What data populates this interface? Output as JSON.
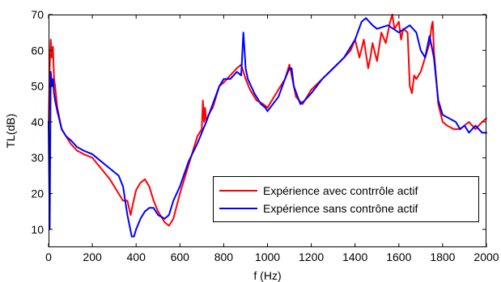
{
  "chart_data": {
    "type": "line",
    "title": "",
    "xlabel": "f (Hz)",
    "ylabel": "TL(dB)",
    "xlim": [
      0,
      2000
    ],
    "ylim": [
      5,
      70
    ],
    "xticks": [
      "0",
      "200",
      "400",
      "600",
      "800",
      "1000",
      "1200",
      "1400",
      "1600",
      "1800",
      "2000"
    ],
    "yticks": [
      "10",
      "20",
      "30",
      "40",
      "50",
      "60",
      "70"
    ],
    "grid": false,
    "legend_position": "bottom-right",
    "series": [
      {
        "name": "Expérience avec contrrôle actif",
        "color": "#ff0000",
        "x": [
          0,
          5,
          10,
          15,
          20,
          25,
          30,
          40,
          60,
          80,
          100,
          130,
          160,
          200,
          240,
          280,
          320,
          340,
          360,
          375,
          385,
          400,
          420,
          440,
          460,
          480,
          500,
          530,
          550,
          570,
          600,
          640,
          680,
          700,
          705,
          710,
          715,
          720,
          730,
          750,
          780,
          800,
          830,
          860,
          880,
          900,
          920,
          950,
          980,
          1000,
          1050,
          1080,
          1100,
          1110,
          1130,
          1160,
          1180,
          1200,
          1250,
          1300,
          1350,
          1380,
          1400,
          1420,
          1440,
          1460,
          1470,
          1480,
          1500,
          1520,
          1540,
          1560,
          1570,
          1580,
          1600,
          1610,
          1620,
          1640,
          1650,
          1660,
          1670,
          1680,
          1700,
          1720,
          1740,
          1750,
          1755,
          1760,
          1780,
          1800,
          1820,
          1850,
          1880,
          1900,
          1920,
          1950,
          1980,
          2000
        ],
        "y": [
          38,
          55,
          63,
          58,
          61,
          52,
          50,
          44,
          38,
          36,
          34,
          32,
          31,
          30,
          27,
          24,
          20,
          18,
          18,
          14,
          17,
          21,
          23,
          24,
          22,
          18,
          15,
          12,
          11,
          13,
          20,
          28,
          36,
          38,
          46,
          40,
          44,
          40,
          42,
          44,
          50,
          51,
          53,
          55,
          56,
          52,
          49,
          46,
          45,
          44,
          49,
          52,
          56,
          53,
          47,
          45,
          47,
          49,
          52,
          55,
          58,
          60,
          63,
          58,
          63,
          55,
          58,
          62,
          57,
          65,
          62,
          68,
          70,
          66,
          68,
          63,
          66,
          65,
          50,
          48,
          53,
          52,
          54,
          58,
          62,
          67,
          68,
          60,
          45,
          40,
          39,
          38,
          38,
          39,
          40,
          38,
          40,
          41
        ]
      },
      {
        "name": "Expérience sans contrône actif",
        "color": "#0000ff",
        "x": [
          0,
          5,
          10,
          15,
          20,
          25,
          30,
          40,
          60,
          80,
          100,
          130,
          160,
          200,
          240,
          280,
          320,
          340,
          360,
          380,
          390,
          400,
          420,
          440,
          460,
          480,
          500,
          530,
          550,
          570,
          600,
          640,
          680,
          700,
          720,
          750,
          780,
          800,
          830,
          860,
          880,
          890,
          895,
          900,
          910,
          940,
          970,
          990,
          1000,
          1050,
          1080,
          1100,
          1110,
          1120,
          1150,
          1170,
          1200,
          1250,
          1300,
          1350,
          1400,
          1430,
          1450,
          1480,
          1500,
          1550,
          1600,
          1650,
          1680,
          1700,
          1720,
          1740,
          1760,
          1780,
          1800,
          1830,
          1860,
          1880,
          1900,
          1920,
          1950,
          1980,
          2000
        ],
        "y": [
          40,
          10,
          54,
          50,
          52,
          48,
          46,
          43,
          38,
          36,
          35,
          33,
          32,
          31,
          29,
          27,
          25,
          22,
          14,
          8,
          8,
          10,
          13,
          15,
          16,
          16,
          14,
          13,
          14,
          18,
          22,
          29,
          34,
          37,
          40,
          45,
          50,
          52,
          52,
          54,
          53,
          65,
          60,
          55,
          52,
          48,
          45,
          44,
          43,
          47,
          52,
          55,
          55,
          50,
          45,
          46,
          48,
          52,
          55,
          58,
          63,
          68,
          69,
          67,
          66,
          67,
          65,
          67,
          65,
          60,
          58,
          64,
          58,
          46,
          42,
          41,
          40,
          38,
          39,
          37,
          39,
          37,
          37
        ]
      }
    ]
  }
}
